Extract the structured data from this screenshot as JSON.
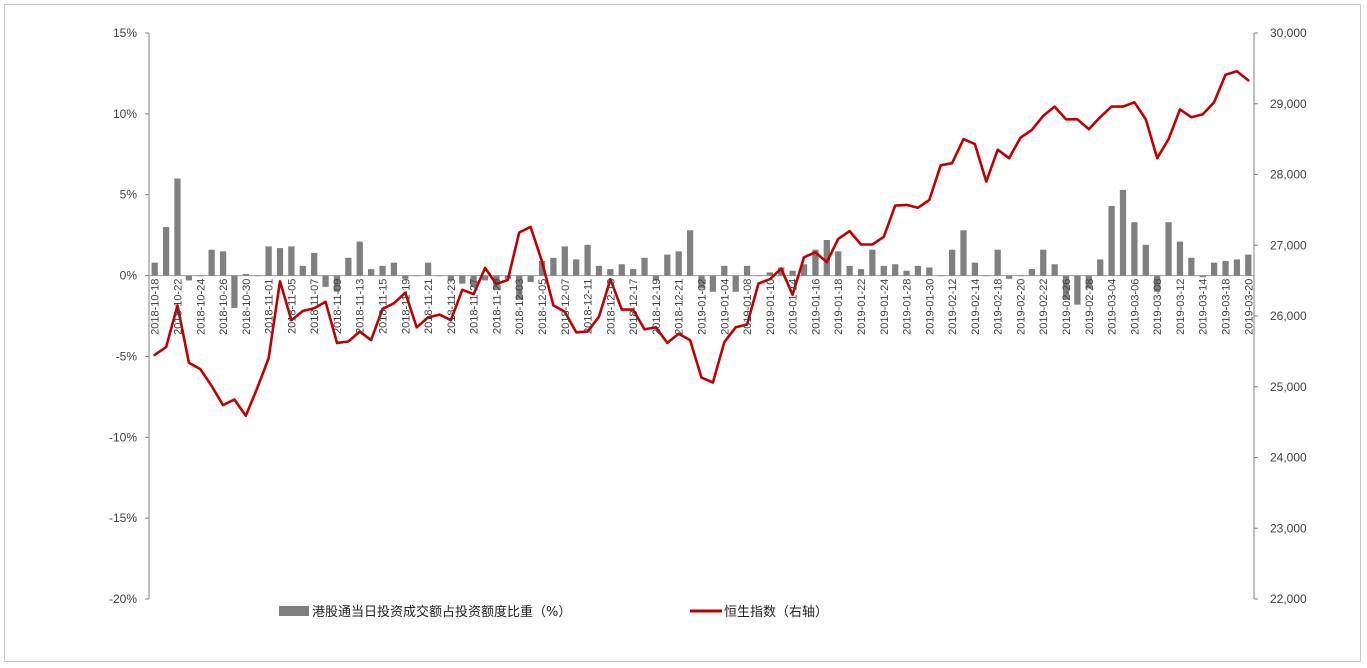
{
  "chart_data": {
    "type": "bar+line",
    "title": "",
    "x": [
      "2018-10-18",
      "2018-10-19",
      "2018-10-22",
      "2018-10-23",
      "2018-10-24",
      "2018-10-25",
      "2018-10-26",
      "2018-10-29",
      "2018-10-30",
      "2018-10-31",
      "2018-11-01",
      "2018-11-02",
      "2018-11-05",
      "2018-11-06",
      "2018-11-07",
      "2018-11-08",
      "2018-11-09",
      "2018-11-12",
      "2018-11-13",
      "2018-11-14",
      "2018-11-15",
      "2018-11-16",
      "2018-11-19",
      "2018-11-20",
      "2018-11-21",
      "2018-11-22",
      "2018-11-23",
      "2018-11-26",
      "2018-11-27",
      "2018-11-28",
      "2018-11-29",
      "2018-11-30",
      "2018-12-03",
      "2018-12-04",
      "2018-12-05",
      "2018-12-06",
      "2018-12-07",
      "2018-12-10",
      "2018-12-11",
      "2018-12-12",
      "2018-12-13",
      "2018-12-14",
      "2018-12-17",
      "2018-12-18",
      "2018-12-19",
      "2018-12-20",
      "2018-12-21",
      "2018-12-24",
      "2019-01-02",
      "2019-01-03",
      "2019-01-04",
      "2019-01-07",
      "2019-01-08",
      "2019-01-09",
      "2019-01-10",
      "2019-01-11",
      "2019-01-14",
      "2019-01-15",
      "2019-01-16",
      "2019-01-17",
      "2019-01-18",
      "2019-01-21",
      "2019-01-22",
      "2019-01-23",
      "2019-01-24",
      "2019-01-25",
      "2019-01-28",
      "2019-01-29",
      "2019-01-30",
      "2019-01-31",
      "2019-02-12",
      "2019-02-13",
      "2019-02-14",
      "2019-02-15",
      "2019-02-18",
      "2019-02-19",
      "2019-02-20",
      "2019-02-21",
      "2019-02-22",
      "2019-02-25",
      "2019-02-26",
      "2019-02-27",
      "2019-02-28",
      "2019-03-01",
      "2019-03-04",
      "2019-03-05",
      "2019-03-06",
      "2019-03-07",
      "2019-03-08",
      "2019-03-11",
      "2019-03-12",
      "2019-03-13",
      "2019-03-14",
      "2019-03-15",
      "2019-03-18",
      "2019-03-19",
      "2019-03-20"
    ],
    "x_tick_labels": [
      "2018-10-18",
      "2018-10-22",
      "2018-10-24",
      "2018-10-26",
      "2018-10-30",
      "2018-11-01",
      "2018-11-05",
      "2018-11-07",
      "2018-11-09",
      "2018-11-13",
      "2018-11-15",
      "2018-11-19",
      "2018-11-21",
      "2018-11-23",
      "2018-11-27",
      "2018-11-29",
      "2018-12-03",
      "2018-12-05",
      "2018-12-07",
      "2018-12-11",
      "2018-12-13",
      "2018-12-17",
      "2018-12-19",
      "2018-12-21",
      "2019-01-02",
      "2019-01-04",
      "2019-01-08",
      "2019-01-10",
      "2019-01-14",
      "2019-01-16",
      "2019-01-18",
      "2019-01-22",
      "2019-01-24",
      "2019-01-28",
      "2019-01-30",
      "2019-02-12",
      "2019-02-14",
      "2019-02-18",
      "2019-02-20",
      "2019-02-22",
      "2019-02-26",
      "2019-02-28",
      "2019-03-04",
      "2019-03-06",
      "2019-03-08",
      "2019-03-12",
      "2019-03-14",
      "2019-03-18",
      "2019-03-20"
    ],
    "series": [
      {
        "name": "港股通当日投资成交额占投资额度比重（%）",
        "type": "bar",
        "axis": "left",
        "color": "#808080",
        "values": [
          0.8,
          3.0,
          6.0,
          -0.3,
          0.0,
          1.6,
          1.5,
          -2.0,
          0.1,
          0.0,
          1.8,
          1.7,
          1.8,
          0.6,
          1.4,
          -0.7,
          -1.0,
          1.1,
          2.1,
          0.4,
          0.6,
          0.8,
          -0.2,
          0.0,
          0.8,
          0.0,
          -0.3,
          -0.5,
          -0.7,
          -0.3,
          -0.9,
          -0.2,
          -1.5,
          -0.4,
          0.9,
          1.1,
          1.8,
          1.0,
          1.9,
          0.6,
          0.4,
          0.7,
          0.4,
          1.1,
          -0.3,
          1.3,
          1.5,
          2.8,
          -0.8,
          -1.0,
          0.6,
          -1.0,
          0.6,
          0.0,
          0.2,
          0.5,
          0.3,
          0.7,
          1.6,
          2.2,
          1.5,
          0.6,
          0.4,
          1.6,
          0.6,
          0.7,
          0.3,
          0.6,
          0.5,
          0.0,
          1.6,
          2.8,
          0.8,
          0.0,
          1.6,
          -0.2,
          0.0,
          0.4,
          1.6,
          0.7,
          -1.5,
          -1.8,
          -0.8,
          1.0,
          4.3,
          5.3,
          3.3,
          1.9,
          -1.0,
          3.3,
          2.1,
          1.1,
          -0.1,
          0.8,
          0.9,
          1.0,
          1.3
        ]
      },
      {
        "name": "恒生指数（右轴）",
        "type": "line",
        "axis": "right",
        "color": "#c00000",
        "values": [
          25450,
          25560,
          26150,
          25340,
          25250,
          25010,
          24740,
          24820,
          24590,
          24980,
          25400,
          26490,
          25940,
          26070,
          26110,
          26200,
          25620,
          25640,
          25780,
          25660,
          26100,
          26180,
          26330,
          25840,
          25980,
          26020,
          25940,
          26370,
          26310,
          26680,
          26450,
          26510,
          27180,
          27260,
          26770,
          26150,
          26060,
          25770,
          25780,
          25990,
          26520,
          26090,
          26090,
          25810,
          25840,
          25620,
          25750,
          25660,
          25130,
          25060,
          25630,
          25840,
          25880,
          26460,
          26520,
          26670,
          26300,
          26830,
          26900,
          26760,
          27090,
          27200,
          27010,
          27010,
          27120,
          27560,
          27570,
          27530,
          27640,
          28130,
          28160,
          28500,
          28430,
          27900,
          28350,
          28230,
          28520,
          28630,
          28830,
          28960,
          28780,
          28780,
          28640,
          28810,
          28960,
          28960,
          29020,
          28780,
          28230,
          28500,
          28920,
          28810,
          28850,
          29020,
          29410,
          29460,
          29330
        ]
      }
    ],
    "y_left": {
      "lim": [
        -20,
        15
      ],
      "ticks": [
        15,
        10,
        5,
        0,
        -5,
        -10,
        -15,
        -20
      ],
      "tick_labels": [
        "15%",
        "10%",
        "5%",
        "0%",
        "-5%",
        "-10%",
        "-15%",
        "-20%"
      ]
    },
    "y_right": {
      "lim": [
        22000,
        30000
      ],
      "ticks": [
        30000,
        29000,
        28000,
        27000,
        26000,
        25000,
        24000,
        23000,
        22000
      ],
      "tick_labels": [
        "30,000",
        "29,000",
        "28,000",
        "27,000",
        "26,000",
        "25,000",
        "24,000",
        "23,000",
        "22,000"
      ]
    },
    "grid": false,
    "legend_position": "bottom"
  }
}
